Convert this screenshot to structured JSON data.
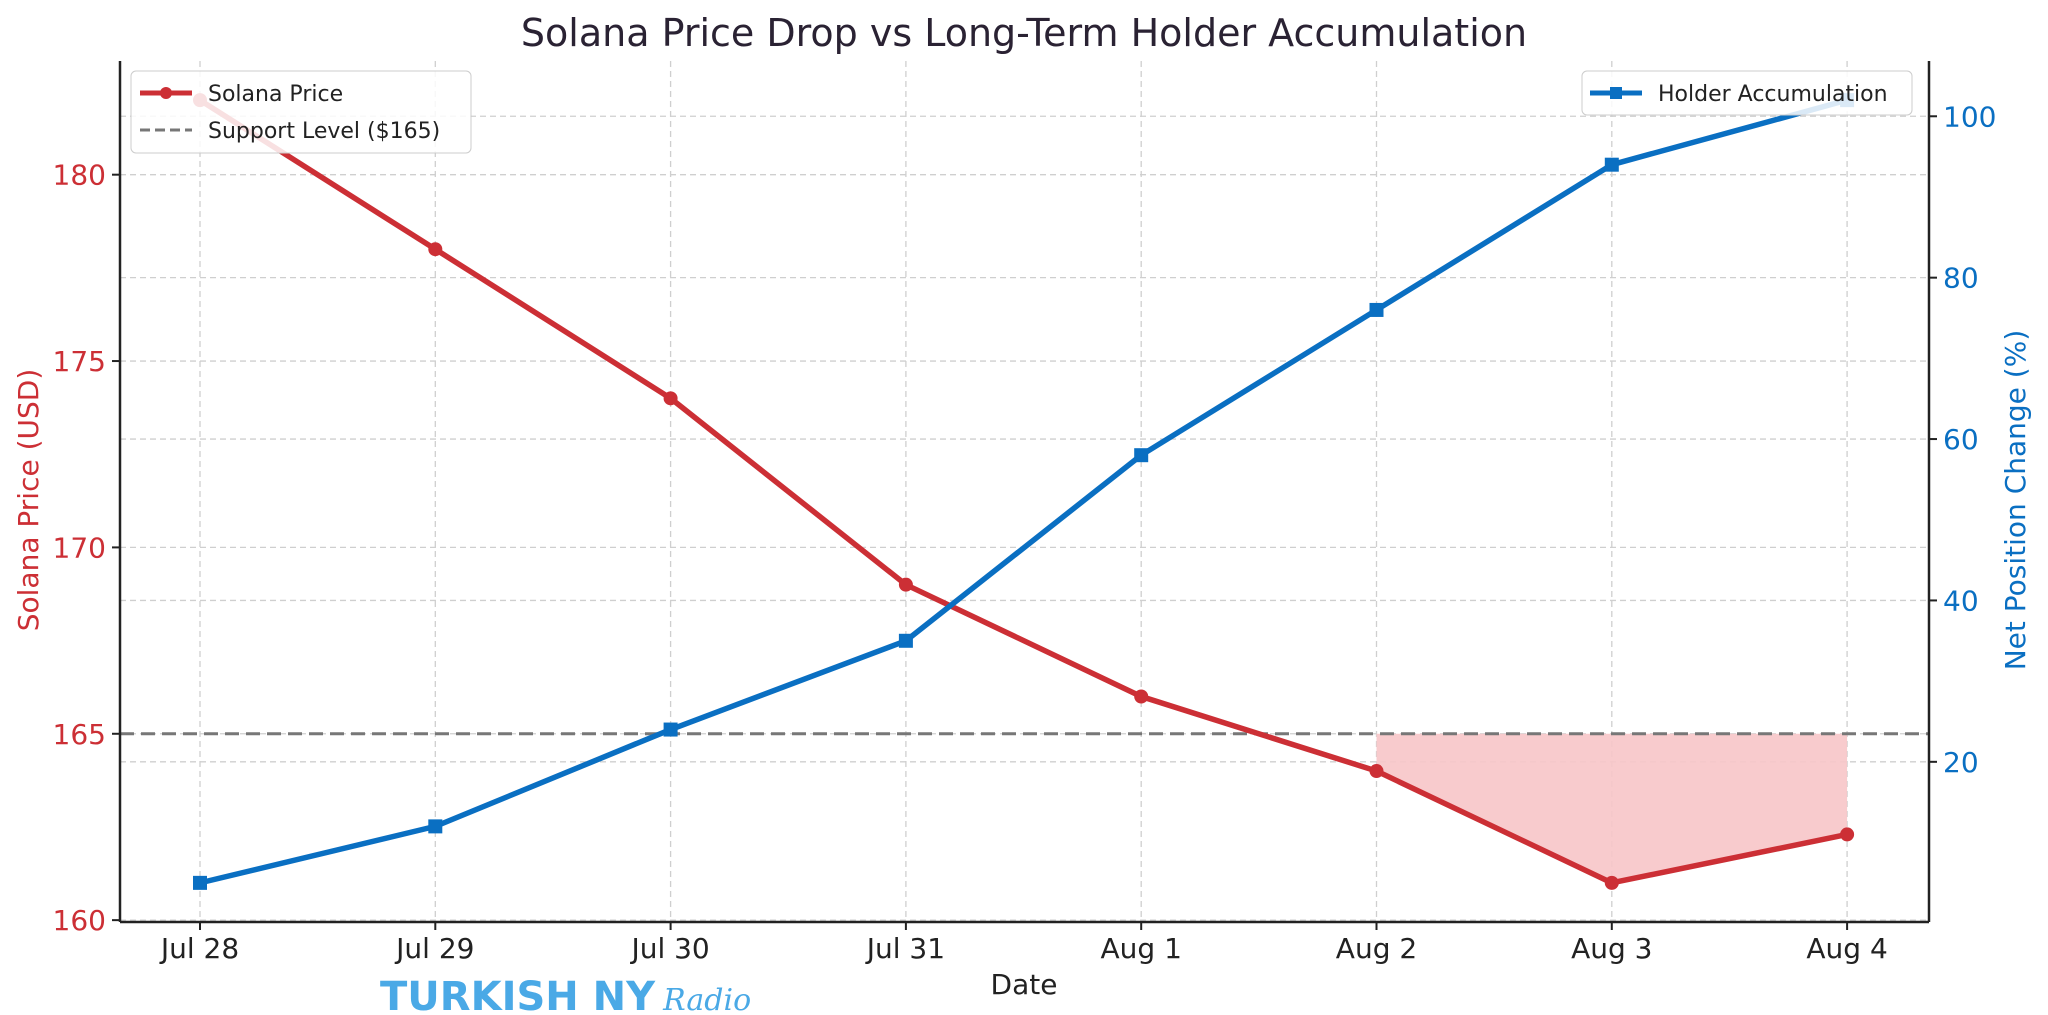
{
  "chart_data": {
    "type": "line",
    "title": "Solana Price Drop vs Long-Term Holder Accumulation",
    "xlabel": "Date",
    "categories": [
      "Jul 28",
      "Jul 29",
      "Jul 30",
      "Jul 31",
      "Aug 1",
      "Aug 2",
      "Aug 3",
      "Aug 4"
    ],
    "y_left": {
      "label": "Solana Price (USD)",
      "ylim": [
        159.95,
        183.05
      ],
      "ticks": [
        160,
        165,
        170,
        175,
        180
      ],
      "color": "#cc2f35"
    },
    "y_right": {
      "label": "Net Position Change (%)",
      "ylim": [
        0.15,
        106.85
      ],
      "ticks": [
        20,
        40,
        60,
        80,
        100
      ],
      "color": "#0a6fc2"
    },
    "series": [
      {
        "name": "Solana Price",
        "axis": "left",
        "marker": "circle",
        "color": "#cc2f35",
        "values": [
          182,
          178,
          174,
          169,
          166,
          164,
          161,
          162.3
        ]
      },
      {
        "name": "Holder Accumulation",
        "axis": "right",
        "marker": "square",
        "color": "#0a6fc2",
        "values": [
          5,
          12,
          24,
          35,
          58,
          76,
          94,
          102
        ]
      }
    ],
    "reference_line": {
      "name": "Support Level ($165)",
      "value": 165,
      "axis": "left",
      "style": "dashed",
      "color": "#777777"
    },
    "shaded_region": {
      "from": "Aug 2",
      "to": "Aug 4",
      "between": "Solana Price and 165",
      "color": "#f7c5c8"
    },
    "grid": true,
    "legends": [
      {
        "placement": "upper-left",
        "entries": [
          "Solana Price",
          "Support Level ($165)"
        ]
      },
      {
        "placement": "upper-right",
        "entries": [
          "Holder Accumulation"
        ]
      }
    ]
  },
  "watermark": {
    "text": "TURKISH NY Radio",
    "color": "#4aa9e6"
  }
}
